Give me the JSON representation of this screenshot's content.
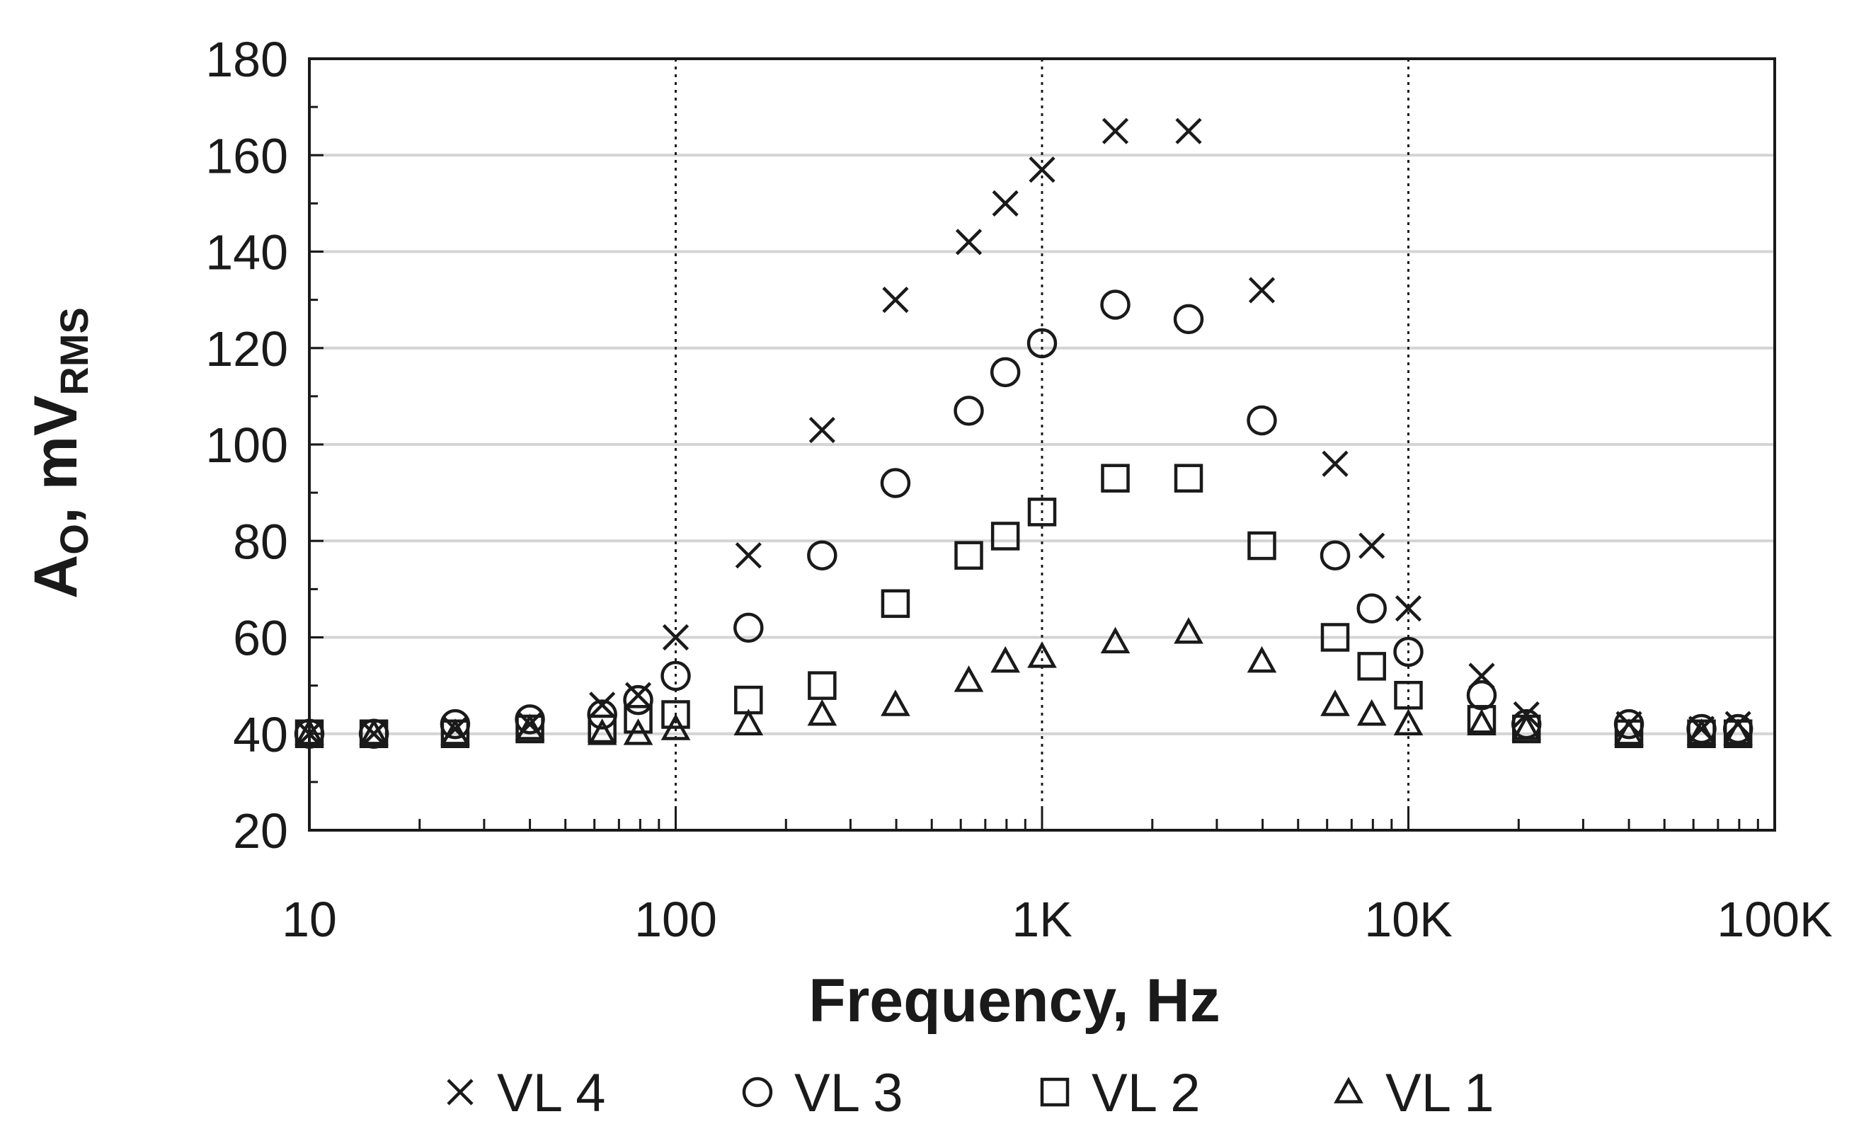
{
  "chart_data": {
    "type": "scatter",
    "title": "",
    "xlabel": "Frequency, Hz",
    "ylabel": {
      "main": "A",
      "main_sub": "O",
      "rest": ", mV",
      "rest_sub": "RMS"
    },
    "x_scale": "log",
    "xlim": [
      10,
      100000
    ],
    "ylim": [
      20,
      180
    ],
    "y_ticks": [
      20,
      40,
      60,
      80,
      100,
      120,
      140,
      160,
      180
    ],
    "x_ticks": [
      {
        "value": 10,
        "label": "10"
      },
      {
        "value": 100,
        "label": "100"
      },
      {
        "value": 1000,
        "label": "1K"
      },
      {
        "value": 10000,
        "label": "10K"
      },
      {
        "value": 100000,
        "label": "100K"
      }
    ],
    "grid": {
      "y_major": true,
      "x_decades_dotted": true
    },
    "legend_position": "bottom",
    "series": [
      {
        "name": "VL 4",
        "marker": "x",
        "x": [
          10,
          15,
          25,
          40,
          63,
          79,
          100,
          158,
          251,
          398,
          631,
          794,
          1000,
          1585,
          2512,
          3981,
          6310,
          7943,
          10000,
          15850,
          21000,
          40000,
          63100,
          79400
        ],
        "y": [
          40,
          40,
          41,
          42,
          46,
          48,
          60,
          77,
          103,
          130,
          142,
          150,
          157,
          165,
          165,
          132,
          96,
          79,
          66,
          52,
          44,
          42,
          41,
          42
        ]
      },
      {
        "name": "VL 3",
        "marker": "circle",
        "x": [
          10,
          15,
          25,
          40,
          63,
          79,
          100,
          158,
          251,
          398,
          631,
          794,
          1000,
          1585,
          2512,
          3981,
          6310,
          7943,
          10000,
          15850,
          21000,
          40000,
          63100,
          79400
        ],
        "y": [
          40,
          40,
          42,
          43,
          44,
          47,
          52,
          62,
          77,
          92,
          107,
          115,
          121,
          129,
          126,
          105,
          77,
          66,
          57,
          48,
          42,
          42,
          41,
          41
        ]
      },
      {
        "name": "VL 2",
        "marker": "square",
        "x": [
          10,
          15,
          25,
          40,
          63,
          79,
          100,
          158,
          251,
          398,
          631,
          794,
          1000,
          1585,
          2512,
          3981,
          6310,
          7943,
          10000,
          15850,
          21000,
          40000,
          63100,
          79400
        ],
        "y": [
          40,
          40,
          40,
          41,
          41,
          43,
          44,
          47,
          50,
          67,
          77,
          81,
          86,
          93,
          93,
          79,
          60,
          54,
          48,
          43,
          41,
          40,
          40,
          40
        ]
      },
      {
        "name": "VL 1",
        "marker": "triangle",
        "x": [
          10,
          15,
          25,
          40,
          63,
          79,
          100,
          158,
          251,
          398,
          631,
          794,
          1000,
          1585,
          2512,
          3981,
          6310,
          7943,
          10000,
          15850,
          21000,
          40000,
          63100,
          79400
        ],
        "y": [
          40,
          40,
          40,
          41,
          40,
          40,
          41,
          42,
          44,
          46,
          51,
          55,
          56,
          59,
          61,
          55,
          46,
          44,
          42,
          42,
          41,
          40,
          40,
          40
        ]
      }
    ]
  }
}
